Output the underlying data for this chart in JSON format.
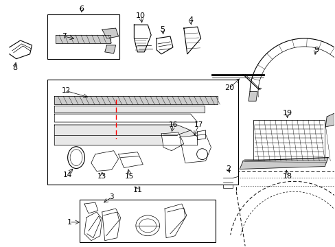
{
  "bg_color": "#ffffff",
  "lw_thin": 0.5,
  "lw_med": 0.8,
  "lw_thick": 1.2,
  "gray_dark": "#888888",
  "gray_mid": "#aaaaaa",
  "gray_light": "#cccccc",
  "gray_fill": "#e8e8e8"
}
